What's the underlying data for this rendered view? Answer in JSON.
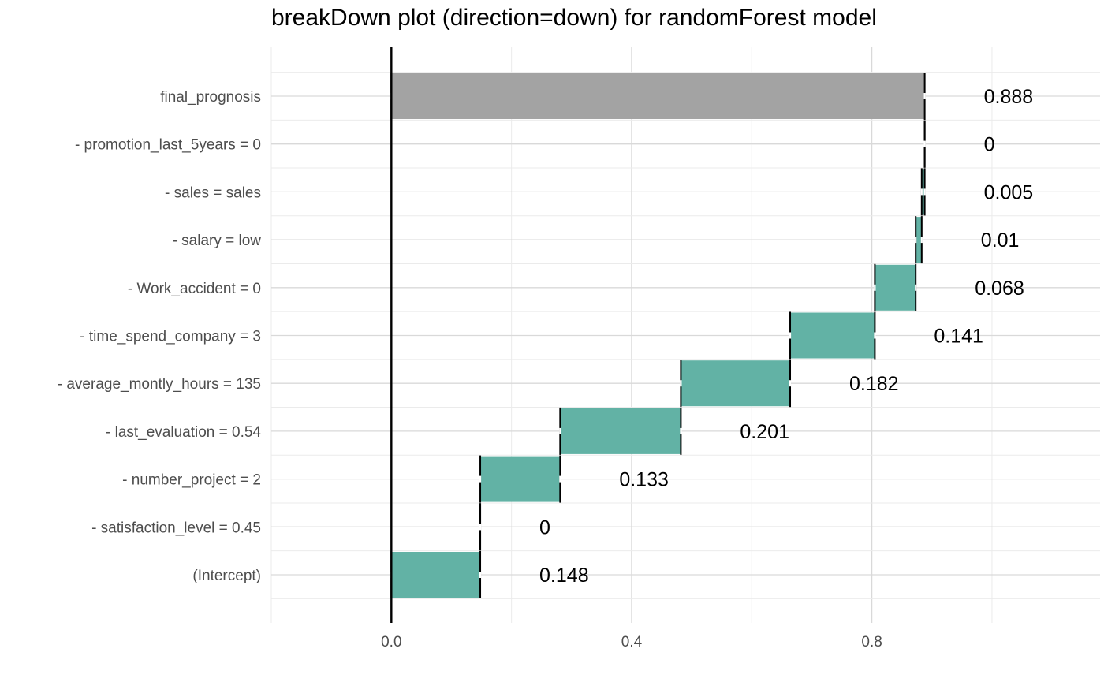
{
  "chart_data": {
    "type": "bar",
    "subtype": "waterfall",
    "title": "breakDown plot (direction=down) for randomForest model",
    "xlabel": "",
    "ylabel": "",
    "xlim": [
      -0.2,
      1.18
    ],
    "x_ticks": [
      0.0,
      0.4,
      0.8
    ],
    "x_tick_labels": [
      "0.0",
      "0.4",
      "0.8"
    ],
    "grid": true,
    "legend": "none",
    "baseline": 0,
    "colors": {
      "contribution": "#5FB0A3",
      "final": "#A3A3A3",
      "baseline_line": "#000000"
    },
    "rows": [
      {
        "label": "final_prognosis",
        "start": 0,
        "end": 0.888,
        "value_label": "0.888",
        "kind": "final"
      },
      {
        "label": "- promotion_last_5years = 0",
        "start": 0.888,
        "end": 0.888,
        "value_label": "0",
        "kind": "contribution"
      },
      {
        "label": "- sales = sales",
        "start": 0.883,
        "end": 0.888,
        "value_label": "0.005",
        "kind": "contribution"
      },
      {
        "label": "- salary = low",
        "start": 0.873,
        "end": 0.883,
        "value_label": "0.01",
        "kind": "contribution"
      },
      {
        "label": "- Work_accident = 0",
        "start": 0.805,
        "end": 0.873,
        "value_label": "0.068",
        "kind": "contribution"
      },
      {
        "label": "- time_spend_company = 3",
        "start": 0.664,
        "end": 0.805,
        "value_label": "0.141",
        "kind": "contribution"
      },
      {
        "label": "- average_montly_hours = 135",
        "start": 0.482,
        "end": 0.664,
        "value_label": "0.182",
        "kind": "contribution"
      },
      {
        "label": "- last_evaluation = 0.54",
        "start": 0.281,
        "end": 0.482,
        "value_label": "0.201",
        "kind": "contribution"
      },
      {
        "label": "- number_project = 2",
        "start": 0.148,
        "end": 0.281,
        "value_label": "0.133",
        "kind": "contribution"
      },
      {
        "label": "- satisfaction_level = 0.45",
        "start": 0.148,
        "end": 0.148,
        "value_label": "0",
        "kind": "contribution"
      },
      {
        "label": "(Intercept)",
        "start": 0,
        "end": 0.148,
        "value_label": "0.148",
        "kind": "contribution"
      }
    ]
  }
}
